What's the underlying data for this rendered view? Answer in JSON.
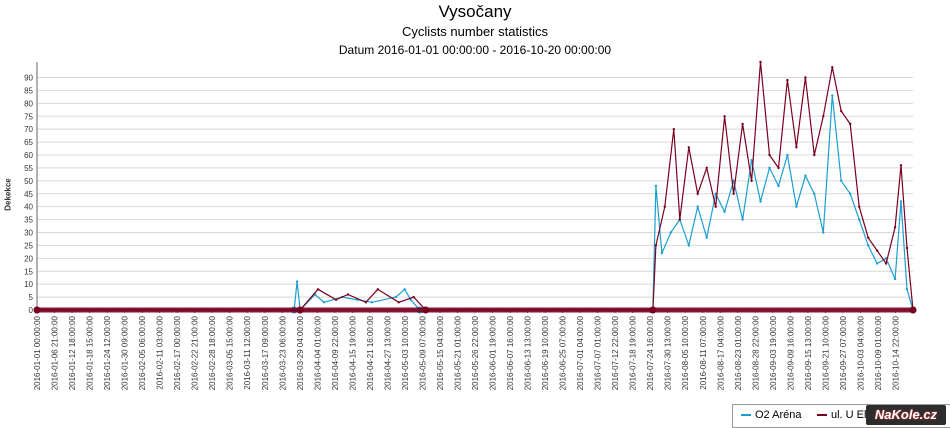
{
  "colors": {
    "series_1": "#1a9fd0",
    "series_2": "#7a0020",
    "grid": "#d8d8d8",
    "axis": "#666666"
  },
  "watermark_text": "NaKole.cz",
  "chart_data": {
    "type": "line",
    "title": "Vysočany",
    "subtitle": "Cyclists number statistics",
    "date_range": "Datum 2016-01-01 00:00:00 - 2016-10-20 00:00:00",
    "xlabel": "",
    "ylabel": "Dekekce",
    "ylim": [
      0,
      96
    ],
    "yticks": [
      0,
      5,
      10,
      15,
      20,
      25,
      30,
      35,
      40,
      45,
      50,
      55,
      60,
      65,
      70,
      75,
      80,
      85,
      90
    ],
    "xlim": [
      "2016-01-01 00:00:00",
      "2016-10-20 00:00:00"
    ],
    "grid": true,
    "legend_position": "bottom-right",
    "x_tick_labels": [
      "2016-01-01 00:00:00",
      "2016-01-06 21:00:00",
      "2016-01-12 18:00:00",
      "2016-01-18 15:00:00",
      "2016-01-24 12:00:00",
      "2016-01-30 09:00:00",
      "2016-02-05 06:00:00",
      "2016-02-11 03:00:00",
      "2016-02-17 00:00:00",
      "2016-02-22 21:00:00",
      "2016-02-28 18:00:00",
      "2016-03-05 15:00:00",
      "2016-03-11 12:00:00",
      "2016-03-17 09:00:00",
      "2016-03-23 06:00:00",
      "2016-03-29 04:00:00",
      "2016-04-04 01:00:00",
      "2016-04-09 22:00:00",
      "2016-04-15 19:00:00",
      "2016-04-21 16:00:00",
      "2016-04-27 13:00:00",
      "2016-05-03 10:00:00",
      "2016-05-09 07:00:00",
      "2016-05-15 04:00:00",
      "2016-05-21 01:00:00",
      "2016-05-26 22:00:00",
      "2016-06-01 19:00:00",
      "2016-06-07 16:00:00",
      "2016-06-13 13:00:00",
      "2016-06-19 10:00:00",
      "2016-06-25 07:00:00",
      "2016-07-01 04:00:00",
      "2016-07-07 01:00:00",
      "2016-07-12 22:00:00",
      "2016-07-18 19:00:00",
      "2016-07-24 16:00:00",
      "2016-07-30 13:00:00",
      "2016-08-05 10:00:00",
      "2016-08-11 07:00:00",
      "2016-08-17 04:00:00",
      "2016-08-23 01:00:00",
      "2016-08-28 22:00:00",
      "2016-09-03 19:00:00",
      "2016-09-09 16:00:00",
      "2016-09-15 13:00:00",
      "2016-09-21 10:00:00",
      "2016-09-27 07:00:00",
      "2016-10-03 04:00:00",
      "2016-10-09 01:00:00",
      "2016-10-14 22:00:00"
    ],
    "series": [
      {
        "name": "O2 Aréna",
        "points": [
          [
            "2016-01-01",
            0
          ],
          [
            "2016-03-27",
            0
          ],
          [
            "2016-03-28",
            11
          ],
          [
            "2016-03-29",
            0
          ],
          [
            "2016-04-03",
            6
          ],
          [
            "2016-04-06",
            3
          ],
          [
            "2016-04-12",
            5
          ],
          [
            "2016-04-17",
            4
          ],
          [
            "2016-04-22",
            3
          ],
          [
            "2016-04-30",
            5
          ],
          [
            "2016-05-03",
            8
          ],
          [
            "2016-05-05",
            4
          ],
          [
            "2016-05-08",
            0
          ],
          [
            "2016-07-25",
            0
          ],
          [
            "2016-07-26",
            48
          ],
          [
            "2016-07-28",
            22
          ],
          [
            "2016-07-31",
            30
          ],
          [
            "2016-08-03",
            35
          ],
          [
            "2016-08-06",
            25
          ],
          [
            "2016-08-09",
            40
          ],
          [
            "2016-08-12",
            28
          ],
          [
            "2016-08-15",
            45
          ],
          [
            "2016-08-18",
            38
          ],
          [
            "2016-08-21",
            50
          ],
          [
            "2016-08-24",
            35
          ],
          [
            "2016-08-27",
            58
          ],
          [
            "2016-08-30",
            42
          ],
          [
            "2016-09-02",
            55
          ],
          [
            "2016-09-05",
            48
          ],
          [
            "2016-09-08",
            60
          ],
          [
            "2016-09-11",
            40
          ],
          [
            "2016-09-14",
            52
          ],
          [
            "2016-09-17",
            45
          ],
          [
            "2016-09-20",
            30
          ],
          [
            "2016-09-23",
            83
          ],
          [
            "2016-09-26",
            50
          ],
          [
            "2016-09-29",
            45
          ],
          [
            "2016-10-02",
            35
          ],
          [
            "2016-10-05",
            25
          ],
          [
            "2016-10-08",
            18
          ],
          [
            "2016-10-11",
            20
          ],
          [
            "2016-10-14",
            12
          ],
          [
            "2016-10-16",
            42
          ],
          [
            "2016-10-18",
            8
          ],
          [
            "2016-10-20",
            0
          ]
        ]
      },
      {
        "name": "ul. U Elek",
        "points": [
          [
            "2016-01-01",
            0
          ],
          [
            "2016-03-29",
            0
          ],
          [
            "2016-04-04",
            8
          ],
          [
            "2016-04-10",
            4
          ],
          [
            "2016-04-14",
            6
          ],
          [
            "2016-04-20",
            3
          ],
          [
            "2016-04-24",
            8
          ],
          [
            "2016-05-01",
            3
          ],
          [
            "2016-05-06",
            5
          ],
          [
            "2016-05-10",
            0
          ],
          [
            "2016-07-25",
            0
          ],
          [
            "2016-07-26",
            25
          ],
          [
            "2016-07-29",
            40
          ],
          [
            "2016-08-01",
            70
          ],
          [
            "2016-08-03",
            35
          ],
          [
            "2016-08-06",
            63
          ],
          [
            "2016-08-09",
            45
          ],
          [
            "2016-08-12",
            55
          ],
          [
            "2016-08-15",
            40
          ],
          [
            "2016-08-18",
            75
          ],
          [
            "2016-08-21",
            45
          ],
          [
            "2016-08-24",
            72
          ],
          [
            "2016-08-27",
            50
          ],
          [
            "2016-08-30",
            96
          ],
          [
            "2016-09-02",
            60
          ],
          [
            "2016-09-05",
            55
          ],
          [
            "2016-09-08",
            89
          ],
          [
            "2016-09-11",
            63
          ],
          [
            "2016-09-14",
            90
          ],
          [
            "2016-09-17",
            60
          ],
          [
            "2016-09-20",
            75
          ],
          [
            "2016-09-23",
            94
          ],
          [
            "2016-09-26",
            77
          ],
          [
            "2016-09-29",
            72
          ],
          [
            "2016-10-02",
            40
          ],
          [
            "2016-10-05",
            28
          ],
          [
            "2016-10-08",
            23
          ],
          [
            "2016-10-11",
            18
          ],
          [
            "2016-10-14",
            32
          ],
          [
            "2016-10-16",
            56
          ],
          [
            "2016-10-18",
            24
          ],
          [
            "2016-10-20",
            0
          ]
        ]
      }
    ]
  }
}
